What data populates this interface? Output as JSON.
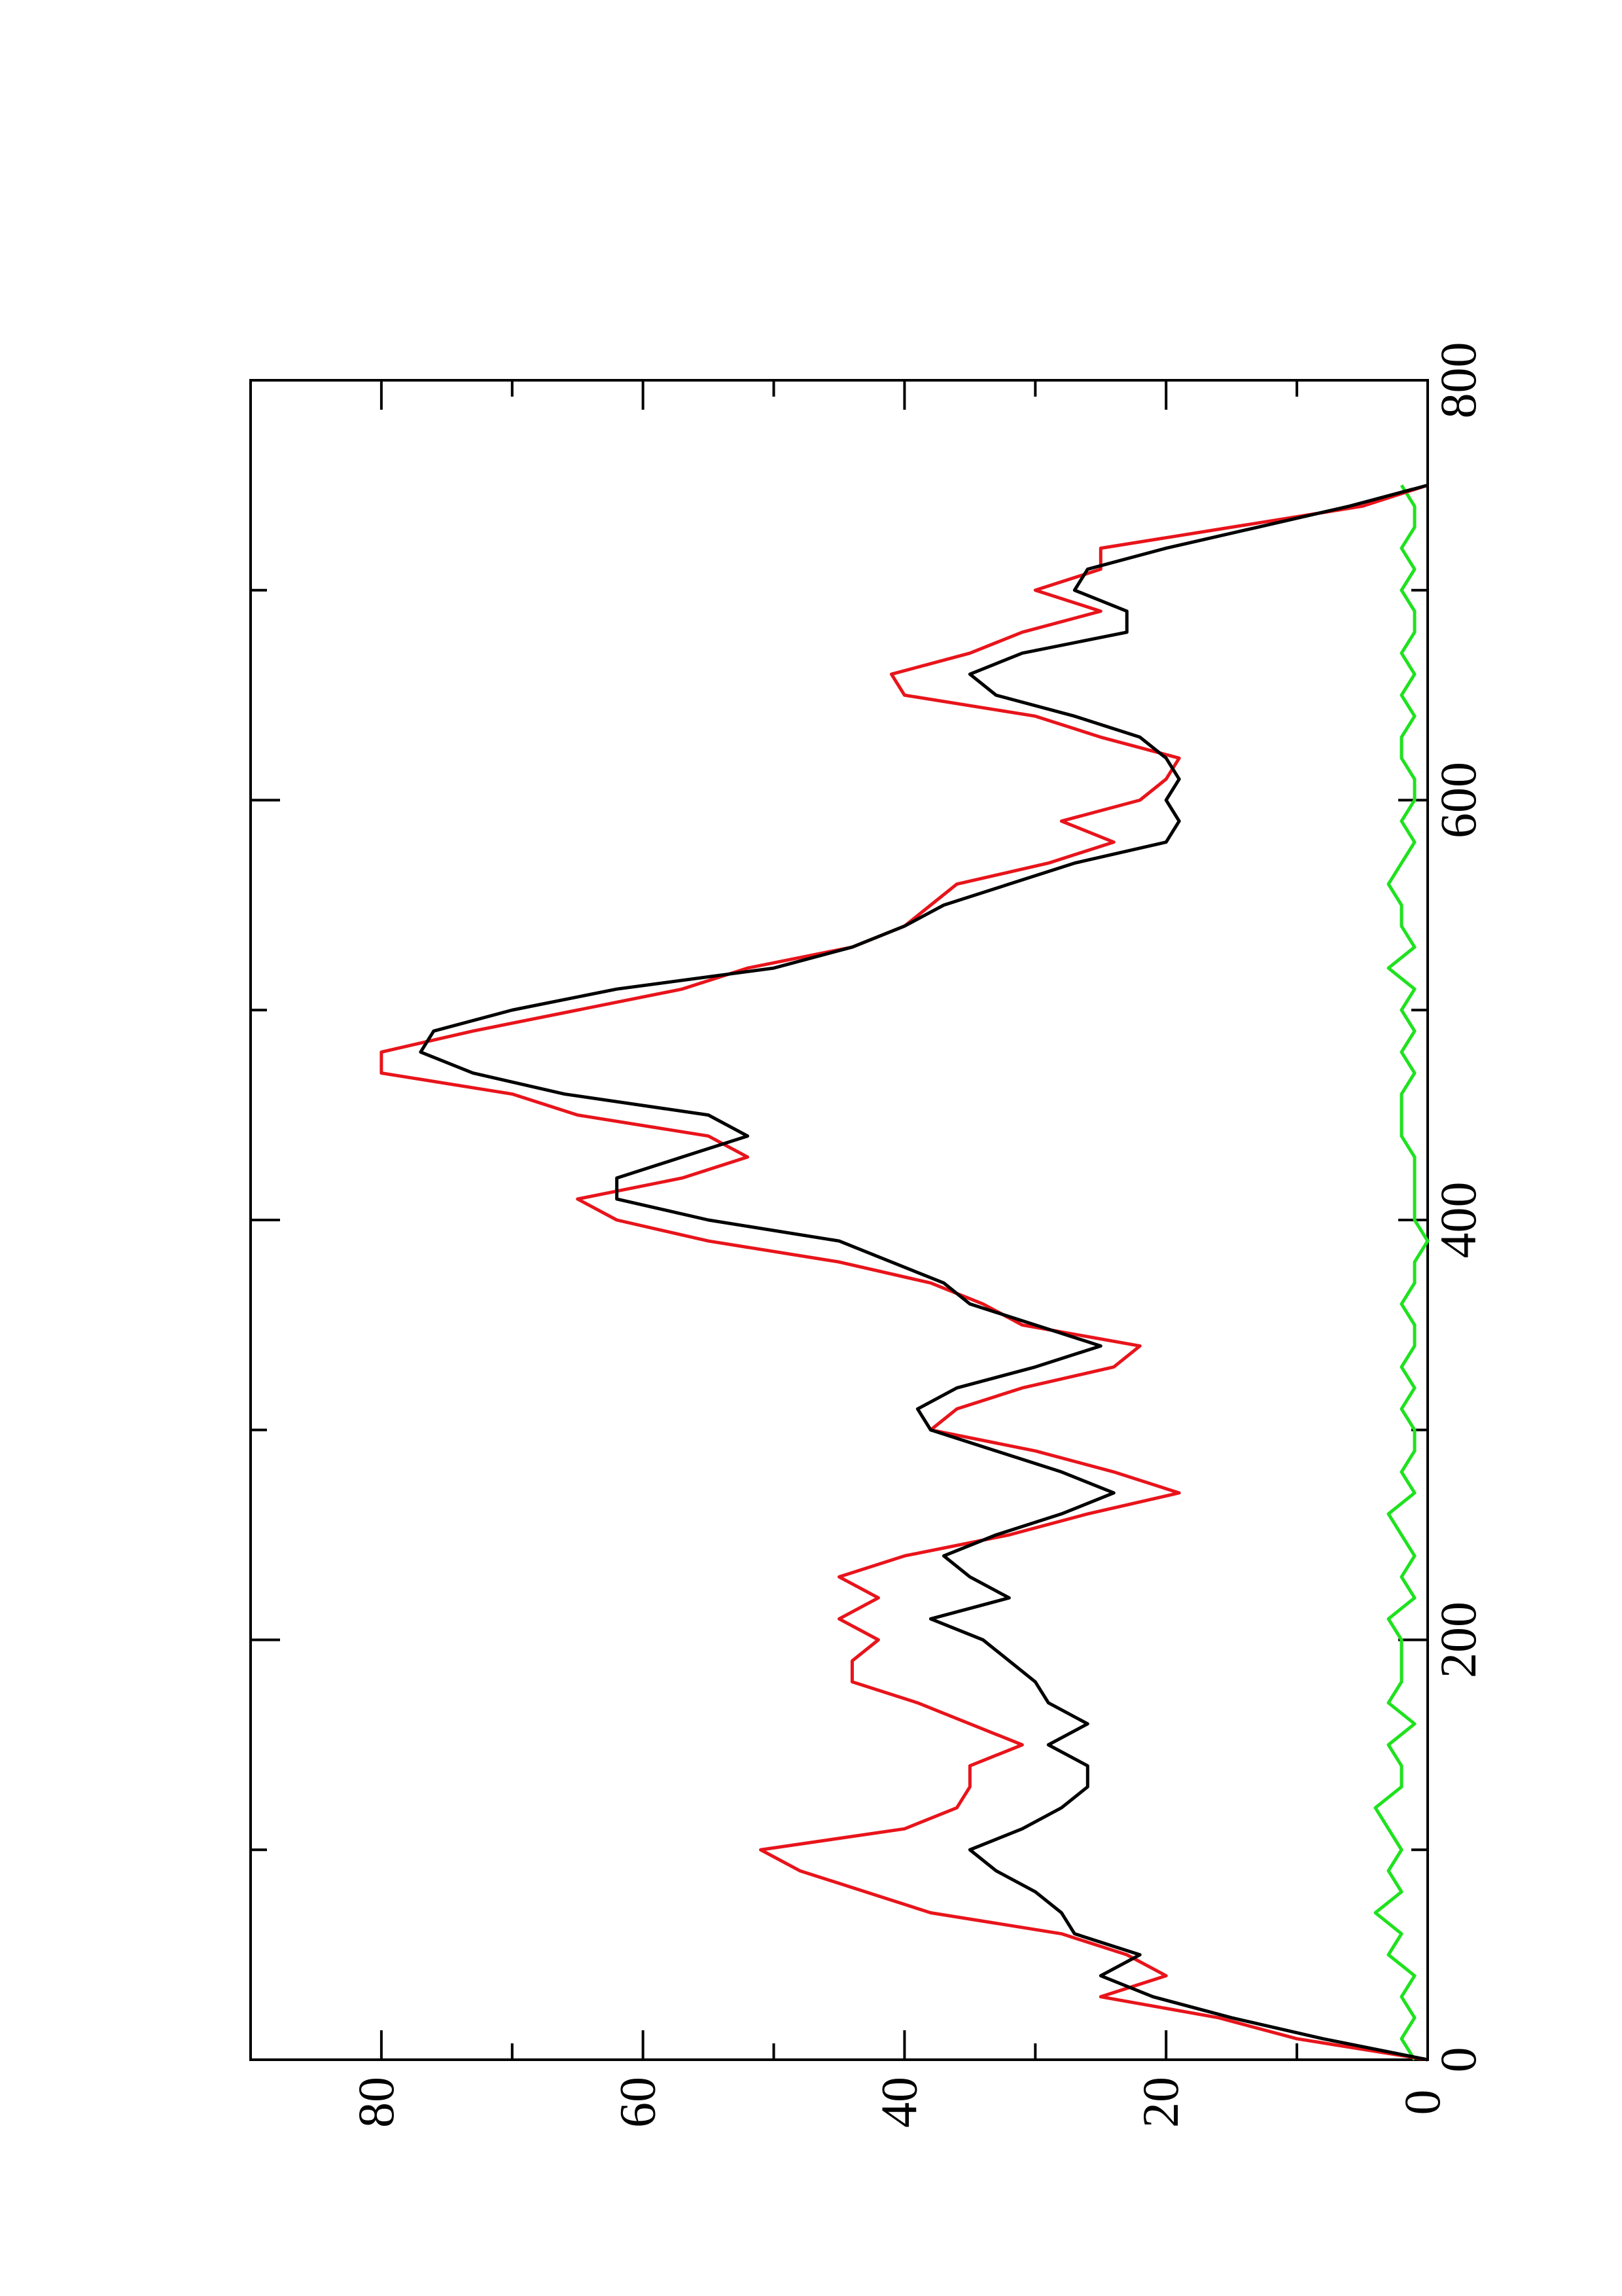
{
  "chart_data": {
    "type": "line",
    "x": [
      0,
      10,
      20,
      30,
      40,
      50,
      60,
      70,
      80,
      90,
      100,
      110,
      120,
      130,
      140,
      150,
      160,
      170,
      180,
      190,
      200,
      210,
      220,
      230,
      240,
      250,
      260,
      270,
      280,
      290,
      300,
      310,
      320,
      330,
      340,
      350,
      360,
      370,
      380,
      390,
      400,
      410,
      420,
      430,
      440,
      450,
      460,
      470,
      480,
      490,
      500,
      510,
      520,
      530,
      540,
      550,
      560,
      570,
      580,
      590,
      600,
      610,
      620,
      630,
      640,
      650,
      660,
      670,
      680,
      690,
      700,
      710,
      720,
      730,
      740,
      750
    ],
    "series": [
      {
        "color": "#000000",
        "values": [
          0,
          8,
          15,
          21,
          25,
          22,
          27,
          28,
          30,
          33,
          35,
          31,
          28,
          26,
          26,
          29,
          26,
          29,
          30,
          32,
          34,
          38,
          32,
          35,
          37,
          33,
          28,
          24,
          28,
          33,
          38,
          39,
          36,
          30,
          25,
          30,
          35,
          37,
          41,
          45,
          55,
          62,
          62,
          57,
          52,
          55,
          66,
          73,
          77,
          76,
          70,
          62,
          50,
          44,
          40,
          37,
          32,
          27,
          20,
          19,
          20,
          19,
          20,
          22,
          27,
          33,
          35,
          31,
          23,
          23,
          27,
          26,
          20,
          13,
          6,
          0
        ]
      },
      {
        "color": "#e8141b",
        "values": [
          0,
          10,
          16,
          25,
          20,
          23,
          28,
          38,
          43,
          48,
          51,
          40,
          36,
          35,
          35,
          31,
          35,
          39,
          44,
          44,
          42,
          45,
          42,
          45,
          40,
          32,
          26,
          19,
          24,
          30,
          38,
          36,
          31,
          24,
          22,
          31,
          34,
          38,
          45,
          55,
          62,
          65,
          57,
          52,
          55,
          65,
          70,
          80,
          80,
          73,
          65,
          57,
          52,
          44,
          40,
          38,
          36,
          29,
          24,
          28,
          22,
          20,
          19,
          25,
          30,
          40,
          41,
          35,
          31,
          25,
          30,
          25,
          25,
          15,
          5,
          0
        ]
      },
      {
        "color": "#1ee21e",
        "values": [
          1,
          2,
          1,
          2,
          1,
          3,
          2,
          4,
          2,
          3,
          2,
          3,
          4,
          2,
          2,
          3,
          1,
          3,
          2,
          2,
          2,
          3,
          1,
          2,
          1,
          2,
          3,
          1,
          2,
          1,
          1,
          2,
          1,
          2,
          1,
          1,
          2,
          1,
          1,
          0,
          1,
          1,
          1,
          1,
          2,
          2,
          2,
          1,
          2,
          1,
          2,
          1,
          3,
          1,
          2,
          2,
          3,
          2,
          1,
          2,
          1,
          1,
          2,
          2,
          1,
          2,
          1,
          2,
          1,
          1,
          2,
          1,
          2,
          1,
          1,
          2
        ]
      }
    ],
    "xlim": [
      0,
      800
    ],
    "xticks": [
      0,
      200,
      400,
      600,
      800
    ],
    "xminorticks": [
      100,
      300,
      500,
      700
    ],
    "ylim": [
      0,
      90
    ],
    "yticks": [
      0,
      20,
      40,
      60,
      80
    ],
    "yminorticks": [
      10,
      30,
      50,
      70
    ],
    "rotated": true
  }
}
